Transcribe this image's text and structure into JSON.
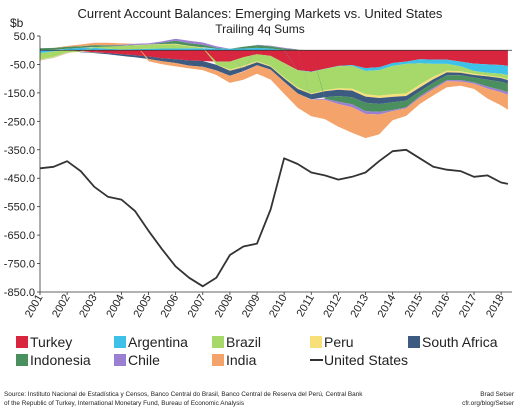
{
  "chart_data": {
    "type": "area",
    "title": "Current Account Balances:  Emerging Markets vs. United States",
    "subtitle": "Trailing 4q Sums",
    "ylabel": "$b",
    "ylim": [
      -850,
      50
    ],
    "y_ticks": [
      50,
      -50,
      -150,
      -250,
      -350,
      -450,
      -550,
      -650,
      -750,
      -850
    ],
    "y_tick_labels": [
      "50.0",
      "-50.0",
      "-150.0",
      "-250.0",
      "-350.0",
      "-450.0",
      "-550.0",
      "-650.0",
      "-750.0",
      "-850.0"
    ],
    "x_tick_labels": [
      "2001",
      "2002",
      "2003",
      "2004",
      "2005",
      "2006",
      "2007",
      "2008",
      "2009",
      "2010",
      "2011",
      "2012",
      "2013",
      "2014",
      "2015",
      "2016",
      "2017",
      "2018"
    ],
    "legend_position": "bottom",
    "grid": false,
    "x": [
      2001.0,
      2001.5,
      2002.0,
      2002.5,
      2003.0,
      2003.5,
      2004.0,
      2004.5,
      2005.0,
      2005.5,
      2006.0,
      2006.5,
      2007.0,
      2007.5,
      2008.0,
      2008.5,
      2009.0,
      2009.5,
      2010.0,
      2010.5,
      2011.0,
      2011.5,
      2012.0,
      2012.5,
      2013.0,
      2013.5,
      2014.0,
      2014.5,
      2015.0,
      2015.5,
      2016.0,
      2016.5,
      2017.0,
      2017.5,
      2018.0,
      2018.25
    ],
    "series": [
      {
        "name": "Turkey",
        "color": "#d7263d",
        "kind": "stack",
        "values": [
          -2,
          2,
          0,
          -3,
          -7,
          -10,
          -14,
          -18,
          -22,
          -28,
          -32,
          -36,
          -38,
          -40,
          -40,
          -25,
          -14,
          -20,
          -45,
          -70,
          -75,
          -65,
          -55,
          -52,
          -63,
          -60,
          -45,
          -40,
          -32,
          -33,
          -33,
          -40,
          -47,
          -50,
          -52,
          -55
        ]
      },
      {
        "name": "Argentina",
        "color": "#3ec1e8",
        "kind": "stack",
        "values": [
          -8,
          -4,
          5,
          8,
          8,
          5,
          3,
          4,
          5,
          6,
          6,
          7,
          7,
          6,
          5,
          6,
          8,
          6,
          1,
          -1,
          -2,
          -1,
          -1,
          -3,
          -10,
          -10,
          -10,
          -8,
          -14,
          -15,
          -15,
          -16,
          -26,
          -29,
          -31,
          -32
        ]
      },
      {
        "name": "Brazil",
        "color": "#a6d96a",
        "kind": "stack",
        "values": [
          -23,
          -20,
          -8,
          -2,
          3,
          8,
          12,
          13,
          14,
          14,
          14,
          7,
          2,
          -10,
          -28,
          -30,
          -25,
          -35,
          -50,
          -60,
          -75,
          -75,
          -78,
          -80,
          -82,
          -90,
          -100,
          -104,
          -75,
          -45,
          -24,
          -18,
          -10,
          -10,
          -12,
          -15
        ]
      },
      {
        "name": "Peru",
        "color": "#f7e07a",
        "kind": "stack",
        "values": [
          -2,
          -2,
          -2,
          -1,
          -1,
          0,
          0,
          1,
          1,
          2,
          3,
          2,
          1,
          -1,
          -4,
          -5,
          -3,
          -3,
          -4,
          -5,
          -3,
          -3,
          -5,
          -7,
          -8,
          -8,
          -9,
          -9,
          -10,
          -9,
          -6,
          -5,
          -4,
          -3,
          -3,
          -3
        ]
      },
      {
        "name": "South Africa",
        "color": "#3d5a80",
        "kind": "stack",
        "values": [
          0,
          0,
          0,
          -1,
          -2,
          -4,
          -6,
          -7,
          -9,
          -11,
          -13,
          -18,
          -20,
          -20,
          -18,
          -14,
          -11,
          -10,
          -12,
          -16,
          -18,
          -21,
          -22,
          -23,
          -22,
          -21,
          -19,
          -16,
          -14,
          -12,
          -10,
          -9,
          -9,
          -12,
          -13,
          -13
        ]
      },
      {
        "name": "Indonesia",
        "color": "#4b8f5f",
        "kind": "stack",
        "values": [
          7,
          6,
          7,
          6,
          7,
          4,
          2,
          1,
          0,
          4,
          10,
          9,
          9,
          3,
          0,
          6,
          10,
          8,
          5,
          2,
          0,
          -5,
          -20,
          -25,
          -29,
          -28,
          -27,
          -24,
          -17,
          -18,
          -17,
          -17,
          -17,
          -24,
          -29,
          -30
        ]
      },
      {
        "name": "Chile",
        "color": "#9b7fd0",
        "kind": "stack",
        "values": [
          -1,
          -1,
          -1,
          0,
          0,
          1,
          2,
          4,
          4,
          5,
          7,
          8,
          8,
          5,
          0,
          -2,
          1,
          2,
          3,
          1,
          -1,
          -4,
          -8,
          -10,
          -10,
          -9,
          -4,
          -3,
          -5,
          -5,
          -4,
          -5,
          -5,
          -7,
          -8,
          -9
        ]
      },
      {
        "name": "India",
        "color": "#f4a36b",
        "kind": "stack",
        "values": [
          -1,
          0,
          3,
          6,
          8,
          8,
          5,
          0,
          -8,
          -10,
          -12,
          -10,
          -12,
          -16,
          -25,
          -28,
          -30,
          -35,
          -42,
          -50,
          -58,
          -68,
          -80,
          -90,
          -85,
          -70,
          -32,
          -27,
          -22,
          -22,
          -21,
          -15,
          -18,
          -35,
          -46,
          -52
        ]
      },
      {
        "name": "United States",
        "color": "#333333",
        "kind": "line",
        "values": [
          -415,
          -410,
          -390,
          -425,
          -480,
          -515,
          -525,
          -565,
          -635,
          -700,
          -760,
          -800,
          -830,
          -800,
          -720,
          -690,
          -680,
          -560,
          -380,
          -400,
          -430,
          -440,
          -455,
          -445,
          -430,
          -390,
          -355,
          -350,
          -380,
          -410,
          -420,
          -425,
          -445,
          -440,
          -465,
          -470
        ]
      }
    ]
  },
  "source_note": "Source: Instituto Nacional de Estadística y Censos, Banco Central do Brasil, Banco Central de Reserva del Perú, Central Bank of the Republic of Turkey, International Monetary Fund, Bureau of Economic Analysis",
  "credit": {
    "author": "Brad Setser",
    "site": "cfr.org/blog/Setser"
  }
}
